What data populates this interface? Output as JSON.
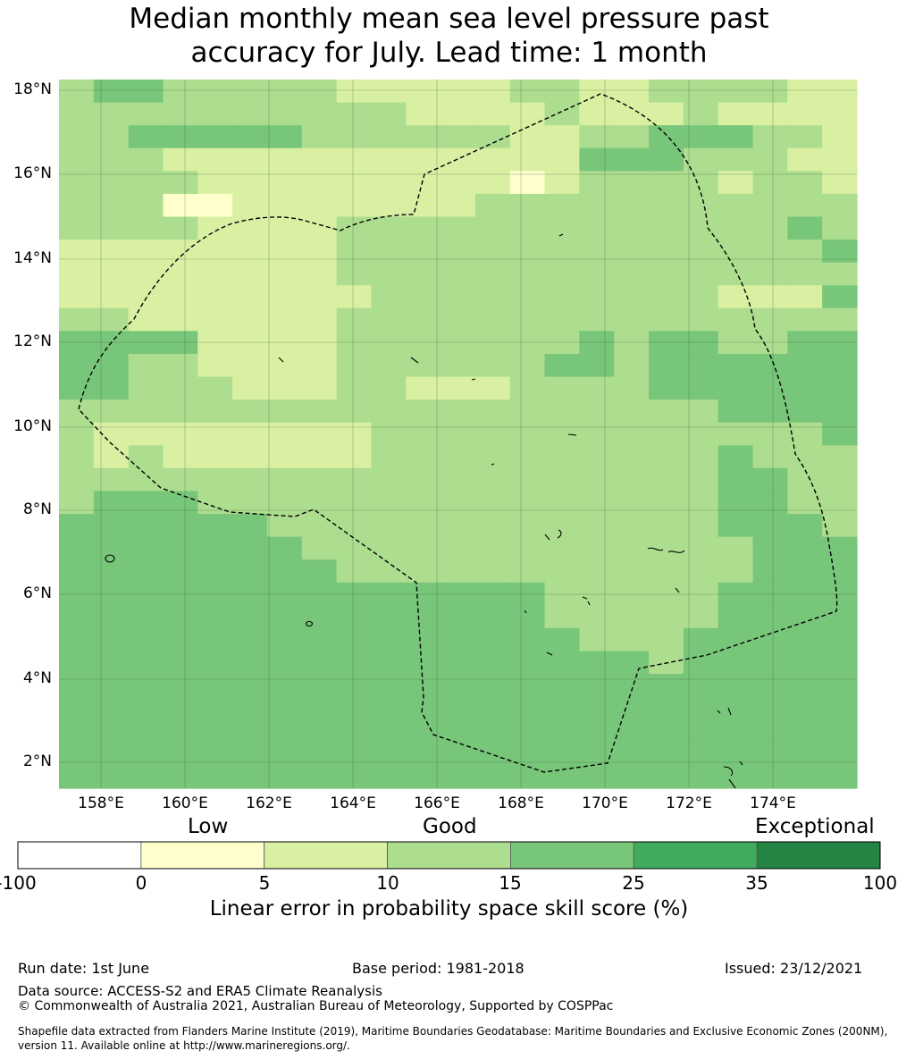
{
  "title": {
    "line1": "Median monthly mean sea level pressure past",
    "line2": "accuracy for July. Lead time: 1 month"
  },
  "map": {
    "lat_labels": [
      "18°N",
      "16°N",
      "14°N",
      "12°N",
      "10°N",
      "8°N",
      "6°N",
      "4°N",
      "2°N"
    ],
    "lon_labels": [
      "158°E",
      "160°E",
      "162°E",
      "164°E",
      "166°E",
      "168°E",
      "170°E",
      "172°E",
      "174°E"
    ],
    "category_colors": [
      "#ffffff",
      "#ffffcc",
      "#d9f0a3",
      "#addd8e",
      "#78c679",
      "#41ab5d",
      "#238443"
    ],
    "grid_resolution_deg": 0.8,
    "grid_rows_north_to_south": [
      "34433333222223322333322",
      "33333333332222322232222",
      "33444443333332233444332",
      "33322222222222244433322",
      "33332222222221233332332",
      "33311222222233333333333",
      "33332222333333333333343",
      "22222222333333333333334",
      "22222222333333333333333",
      "22222222233333333332224",
      "33222222333333333333333",
      "44442222333333343443344",
      "44332222333333443444444",
      "44333222332223333444444",
      "33333333333333333334444",
      "32222222233333333333334",
      "32322222233333333334333",
      "33333333333333333334433",
      "34443333333333333334433",
      "44444433333333333334443",
      "44444443333333333333444",
      "44444444333333333333444",
      "44444444444444333334444",
      "44444444444444333334444",
      "44444444444444433344444",
      "44444444444444444344444",
      "44444444444444444444444",
      "44444444444444444444444",
      "44444444444444444444444",
      "44444444444444444444444",
      "44444444444444444444444"
    ]
  },
  "colorbar": {
    "words": [
      "Low",
      "Good",
      "Exceptional"
    ],
    "ticks": [
      "-100",
      "0",
      "5",
      "10",
      "15",
      "25",
      "35",
      "100"
    ],
    "label": "Linear error in probability space skill score (%)"
  },
  "footer": {
    "run_date": "Run date: 1st June",
    "base_period": "Base period: 1981-2018",
    "issued": "Issued: 23/12/2021",
    "data_source": "Data source: ACCESS-S2 and ERA5 Climate Reanalysis",
    "copyright": "© Commonwealth of Australia 2021, Australian Bureau of Meteorology, Supported by COSPPac",
    "shapefile_line1": "Shapefile data extracted from Flanders Marine Institute (2019), Maritime Boundaries Geodatabase: Maritime Boundaries and Exclusive Economic Zones (200NM),",
    "shapefile_line2": "version 11. Available online at http://www.marineregions.org/."
  }
}
